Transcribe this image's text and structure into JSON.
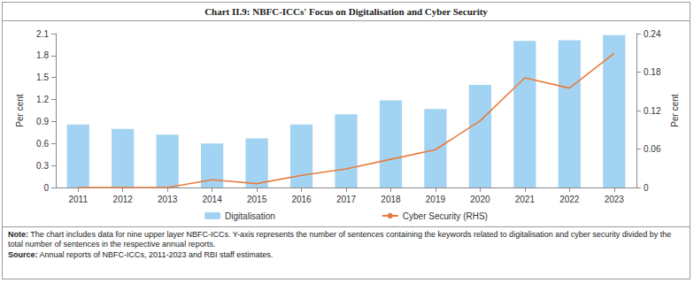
{
  "chart_data": {
    "type": "bar",
    "title": "Chart II.9: NBFC-ICCs' Focus on Digitalisation and Cyber Security",
    "categories": [
      "2011",
      "2012",
      "2013",
      "2014",
      "2015",
      "2016",
      "2017",
      "2018",
      "2019",
      "2020",
      "2021",
      "2022",
      "2023"
    ],
    "series": [
      {
        "name": "Digitalisation",
        "type": "bar",
        "color": "#a3d3f2",
        "values": [
          0.86,
          0.8,
          0.72,
          0.6,
          0.67,
          0.86,
          1.0,
          1.19,
          1.07,
          1.4,
          2.0,
          2.01,
          2.08
        ]
      },
      {
        "name": "Cyber Security (RHS)",
        "type": "line",
        "color": "#e97b3c",
        "axis": "y2",
        "marker": "none",
        "values": [
          0,
          0,
          0,
          0.012,
          0.006,
          0.019,
          0.029,
          0.044,
          0.059,
          0.104,
          0.171,
          0.155,
          0.209
        ]
      }
    ],
    "y_label": "Per cent",
    "y2_label": "Per cent",
    "ylim": [
      0,
      2.1
    ],
    "yticks": [
      0,
      0.3,
      0.6,
      0.9,
      1.2,
      1.5,
      1.8,
      2.1
    ],
    "y2lim": [
      0,
      0.24
    ],
    "y2ticks": [
      0,
      0.06,
      0.12,
      0.18,
      0.24
    ],
    "grid": false,
    "legend": "bottom",
    "annotations": [
      "Note: The chart includes data for nine upper layer NBFC-ICCs. Y-axis represents the number of sentences containing the keywords related to digitalisation and cyber security divided by the total number of sentences in the respective annual reports.",
      "Source: Annual reports of NBFC-ICCs, 2011-2023 and RBI staff estimates."
    ]
  }
}
